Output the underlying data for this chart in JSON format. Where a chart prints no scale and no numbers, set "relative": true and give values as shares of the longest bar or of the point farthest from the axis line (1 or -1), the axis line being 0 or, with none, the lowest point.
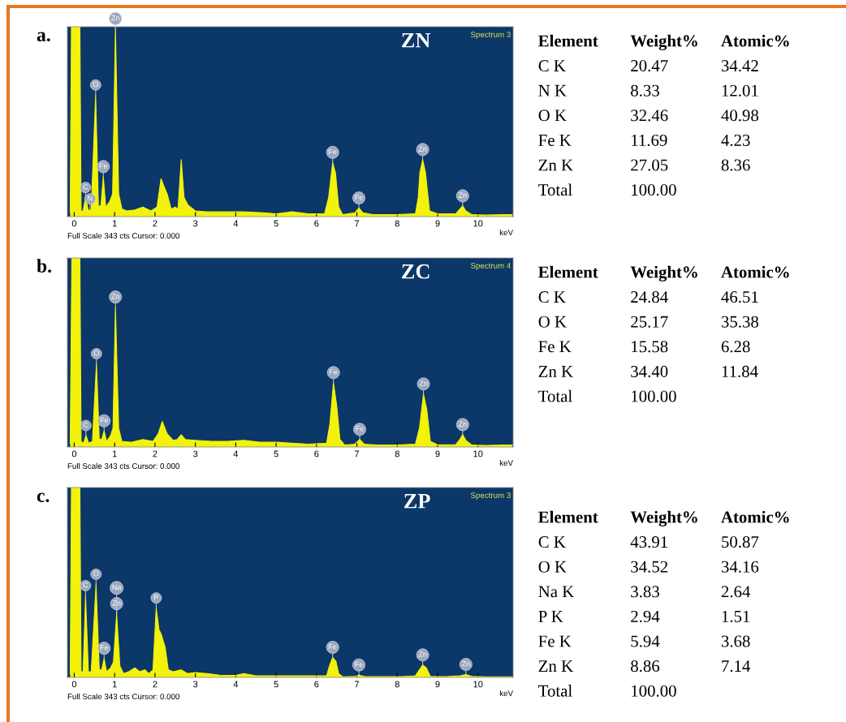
{
  "chart_data": [
    {
      "type": "area",
      "relative": true,
      "title": "ZN",
      "subtitle": "Spectrum 3",
      "xlabel": "keV",
      "xlim": [
        -0.17,
        10.87
      ],
      "xticks": [
        0,
        1,
        2,
        3,
        4,
        5,
        6,
        7,
        8,
        9,
        10
      ],
      "annotations": [
        "a.",
        "Full Scale 343 cts Cursor: 0.000",
        {
          "text": "C",
          "x": 0.28,
          "y": 0.1
        },
        {
          "text": "N",
          "x": 0.39,
          "y": 0.04
        },
        {
          "text": "O",
          "x": 0.53,
          "y": 0.64
        },
        {
          "text": "Fe",
          "x": 0.72,
          "y": 0.21
        },
        {
          "text": "Zn",
          "x": 1.02,
          "y": 0.99
        },
        {
          "text": "Fe",
          "x": 6.4,
          "y": 0.285
        },
        {
          "text": "Fe",
          "x": 7.05,
          "y": 0.045
        },
        {
          "text": "Zn",
          "x": 8.63,
          "y": 0.3
        },
        {
          "text": "Zn",
          "x": 9.62,
          "y": 0.056
        }
      ],
      "series": [
        {
          "color": "#f2f20a",
          "x": [
            -0.1,
            -0.07,
            0.14,
            0.17,
            0.22,
            0.28,
            0.35,
            0.42,
            0.53,
            0.6,
            0.66,
            0.72,
            0.78,
            0.88,
            0.95,
            1.02,
            1.1,
            1.18,
            1.3,
            1.5,
            1.7,
            1.9,
            2.05,
            2.15,
            2.22,
            2.3,
            2.4,
            2.5,
            2.57,
            2.65,
            2.72,
            2.82,
            3.0,
            3.3,
            3.7,
            4.2,
            4.7,
            5.0,
            5.4,
            5.8,
            6.2,
            6.3,
            6.4,
            6.47,
            6.55,
            6.65,
            6.95,
            7.05,
            7.15,
            7.4,
            8.0,
            8.45,
            8.52,
            8.56,
            8.63,
            8.7,
            8.8,
            9.0,
            9.45,
            9.55,
            9.62,
            9.7,
            9.85,
            10.2,
            10.6,
            10.85
          ],
          "values": [
            0.02,
            1,
            1,
            0.03,
            0.03,
            0.1,
            0.03,
            0.04,
            0.64,
            0.05,
            0.06,
            0.21,
            0.05,
            0.08,
            0.12,
            0.99,
            0.12,
            0.04,
            0.03,
            0.035,
            0.05,
            0.03,
            0.05,
            0.2,
            0.16,
            0.12,
            0.04,
            0.05,
            0.04,
            0.3,
            0.1,
            0.06,
            0.03,
            0.025,
            0.025,
            0.025,
            0.02,
            0.015,
            0.025,
            0.015,
            0.015,
            0.1,
            0.285,
            0.23,
            0.05,
            0.01,
            0.02,
            0.045,
            0.02,
            0.01,
            0.01,
            0.015,
            0.1,
            0.23,
            0.3,
            0.23,
            0.03,
            0.015,
            0.015,
            0.04,
            0.056,
            0.03,
            0.01,
            0.008,
            0.01,
            0.01
          ]
        }
      ]
    },
    {
      "type": "other",
      "title": "Element",
      "categories": [
        "C K",
        "N K",
        "O K",
        "Fe K",
        "Zn K",
        "Total"
      ],
      "series": [
        {
          "name": "Weight%",
          "values": [
            20.47,
            8.33,
            32.46,
            11.69,
            27.05,
            100.0
          ],
          "value_labels": [
            "20.47",
            "8.33",
            "32.46",
            "11.69",
            "27.05",
            "100.00"
          ]
        },
        {
          "name": "Atomic%",
          "values": [
            34.42,
            12.01,
            40.98,
            4.23,
            8.36,
            null
          ],
          "value_labels": [
            "34.42",
            "12.01",
            "40.98",
            "4.23",
            "8.36",
            null
          ]
        }
      ]
    },
    {
      "type": "area",
      "relative": true,
      "title": "ZC",
      "subtitle": "Spectrum 4",
      "xlabel": "keV",
      "xlim": [
        -0.17,
        10.87
      ],
      "xticks": [
        0,
        1,
        2,
        3,
        4,
        5,
        6,
        7,
        8,
        9,
        10
      ],
      "annotations": [
        "b.",
        "Full Scale 343 cts Cursor: 0.000",
        {
          "text": "C",
          "x": 0.29,
          "y": 0.06
        },
        {
          "text": "O",
          "x": 0.55,
          "y": 0.44
        },
        {
          "text": "Fe",
          "x": 0.74,
          "y": 0.085
        },
        {
          "text": "Zn",
          "x": 1.02,
          "y": 0.74
        },
        {
          "text": "Fe",
          "x": 6.42,
          "y": 0.34
        },
        {
          "text": "Fe",
          "x": 7.07,
          "y": 0.04
        },
        {
          "text": "Zn",
          "x": 8.65,
          "y": 0.28
        },
        {
          "text": "Zn",
          "x": 9.62,
          "y": 0.065
        }
      ],
      "series": [
        {
          "color": "#f2f20a",
          "x": [
            -0.1,
            -0.06,
            0.14,
            0.17,
            0.23,
            0.29,
            0.36,
            0.45,
            0.55,
            0.62,
            0.68,
            0.74,
            0.8,
            0.9,
            0.96,
            1.02,
            1.1,
            1.18,
            1.4,
            1.7,
            1.95,
            2.08,
            2.18,
            2.3,
            2.45,
            2.55,
            2.65,
            2.75,
            3.0,
            3.4,
            3.8,
            4.2,
            4.6,
            5.0,
            5.4,
            5.8,
            6.25,
            6.33,
            6.42,
            6.5,
            6.58,
            6.7,
            6.95,
            7.07,
            7.18,
            7.5,
            8.0,
            8.45,
            8.55,
            8.65,
            8.73,
            8.82,
            9.0,
            9.45,
            9.55,
            9.62,
            9.7,
            9.85,
            10.2,
            10.6,
            10.85
          ],
          "values": [
            0.02,
            1,
            1,
            0.03,
            0.02,
            0.06,
            0.02,
            0.03,
            0.44,
            0.04,
            0.04,
            0.085,
            0.03,
            0.06,
            0.1,
            0.74,
            0.1,
            0.03,
            0.025,
            0.04,
            0.03,
            0.07,
            0.135,
            0.07,
            0.035,
            0.04,
            0.065,
            0.04,
            0.035,
            0.03,
            0.03,
            0.035,
            0.025,
            0.025,
            0.02,
            0.015,
            0.02,
            0.12,
            0.34,
            0.22,
            0.04,
            0.01,
            0.015,
            0.04,
            0.015,
            0.01,
            0.01,
            0.015,
            0.1,
            0.28,
            0.2,
            0.03,
            0.012,
            0.012,
            0.04,
            0.065,
            0.035,
            0.01,
            0.008,
            0.01,
            0.01
          ]
        }
      ]
    },
    {
      "type": "other",
      "title": "Element",
      "categories": [
        "C K",
        "O K",
        "Fe K",
        "Zn K",
        "Total"
      ],
      "series": [
        {
          "name": "Weight%",
          "values": [
            24.84,
            25.17,
            15.58,
            34.4,
            100.0
          ],
          "value_labels": [
            "24.84",
            "25.17",
            "15.58",
            "34.40",
            "100.00"
          ]
        },
        {
          "name": "Atomic%",
          "values": [
            46.51,
            35.38,
            6.28,
            11.84,
            null
          ],
          "value_labels": [
            "46.51",
            "35.38",
            "6.28",
            "11.84",
            null
          ]
        }
      ]
    },
    {
      "type": "area",
      "relative": true,
      "title": "ZP",
      "subtitle": "Spectrum 3",
      "xlabel": "keV",
      "xlim": [
        -0.17,
        10.87
      ],
      "xticks": [
        0,
        1,
        2,
        3,
        4,
        5,
        6,
        7,
        8,
        9,
        10
      ],
      "annotations": [
        "c.",
        "Full Scale 343 cts Cursor: 0.000",
        {
          "text": "C",
          "x": 0.28,
          "y": 0.43
        },
        {
          "text": "O",
          "x": 0.54,
          "y": 0.49
        },
        {
          "text": "Fe",
          "x": 0.74,
          "y": 0.1
        },
        {
          "text": "Zn",
          "x": 1.05,
          "y": 0.335
        },
        {
          "text": "Na",
          "x": 1.05,
          "y": 0.335
        },
        {
          "text": "P",
          "x": 2.03,
          "y": 0.365
        },
        {
          "text": "Fe",
          "x": 6.4,
          "y": 0.105
        },
        {
          "text": "Fe",
          "x": 7.05,
          "y": 0.012
        },
        {
          "text": "Zn",
          "x": 8.63,
          "y": 0.065
        },
        {
          "text": "Zn",
          "x": 9.7,
          "y": 0.015
        }
      ],
      "series": [
        {
          "color": "#f2f20a",
          "x": [
            -0.1,
            -0.07,
            0.14,
            0.17,
            0.22,
            0.28,
            0.35,
            0.42,
            0.54,
            0.62,
            0.68,
            0.74,
            0.8,
            0.9,
            0.97,
            1.05,
            1.13,
            1.22,
            1.35,
            1.5,
            1.62,
            1.75,
            1.85,
            1.95,
            2.03,
            2.1,
            2.15,
            2.25,
            2.33,
            2.45,
            2.65,
            2.8,
            3.0,
            3.3,
            3.6,
            4.0,
            4.2,
            4.5,
            5.0,
            5.5,
            6.0,
            6.25,
            6.32,
            6.4,
            6.48,
            6.55,
            6.65,
            6.95,
            7.05,
            7.2,
            7.6,
            8.1,
            8.45,
            8.55,
            8.63,
            8.72,
            8.82,
            9.2,
            9.55,
            9.7,
            9.85,
            10.2,
            10.6,
            10.85
          ],
          "values": [
            0.02,
            1,
            1,
            0.03,
            0.03,
            0.43,
            0.03,
            0.03,
            0.49,
            0.04,
            0.04,
            0.1,
            0.03,
            0.05,
            0.08,
            0.335,
            0.06,
            0.02,
            0.03,
            0.05,
            0.03,
            0.04,
            0.02,
            0.04,
            0.365,
            0.25,
            0.23,
            0.16,
            0.04,
            0.03,
            0.04,
            0.02,
            0.025,
            0.02,
            0.012,
            0.01,
            0.02,
            0.008,
            0.008,
            0.008,
            0.008,
            0.008,
            0.06,
            0.105,
            0.085,
            0.02,
            0.003,
            0.005,
            0.012,
            0.004,
            0.004,
            0.004,
            0.008,
            0.04,
            0.065,
            0.05,
            0.005,
            0.004,
            0.008,
            0.015,
            0.005,
            0.003,
            0.003,
            0.003
          ]
        }
      ]
    },
    {
      "type": "other",
      "title": "Element",
      "categories": [
        "C K",
        "O K",
        "Na K",
        "P K",
        "Fe K",
        "Zn K",
        "Total"
      ],
      "series": [
        {
          "name": "Weight%",
          "values": [
            43.91,
            34.52,
            3.83,
            2.94,
            5.94,
            8.86,
            100.0
          ],
          "value_labels": [
            "43.91",
            "34.52",
            "3.83",
            "2.94",
            "5.94",
            "8.86",
            "100.00"
          ]
        },
        {
          "name": "Atomic%",
          "values": [
            50.87,
            34.16,
            2.64,
            1.51,
            3.68,
            7.14,
            null
          ],
          "value_labels": [
            "50.87",
            "34.16",
            "2.64",
            "1.51",
            "3.68",
            "7.14",
            null
          ]
        }
      ]
    }
  ]
}
